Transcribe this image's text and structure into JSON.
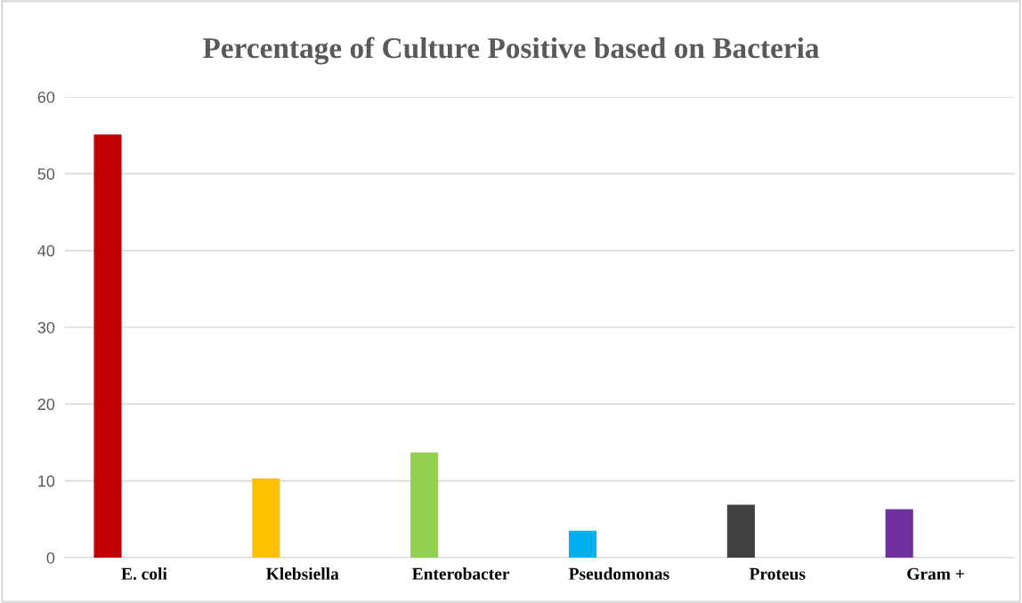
{
  "chart_data": {
    "type": "bar",
    "title": "Percentage of Culture Positive based on Bacteria",
    "categories": [
      "E. coli",
      "Klebsiella",
      "Enterobacter",
      "Pseudomonas",
      "Proteus",
      "Gram +"
    ],
    "values": [
      55.1,
      10.3,
      13.7,
      3.5,
      6.9,
      6.3
    ],
    "colors": [
      "#c00000",
      "#ffc000",
      "#92d050",
      "#00b0f0",
      "#404040",
      "#7030a0"
    ],
    "ylim": [
      0,
      60
    ],
    "yticks": [
      0,
      10,
      20,
      30,
      40,
      50,
      60
    ],
    "grid": "y",
    "legend": false
  }
}
